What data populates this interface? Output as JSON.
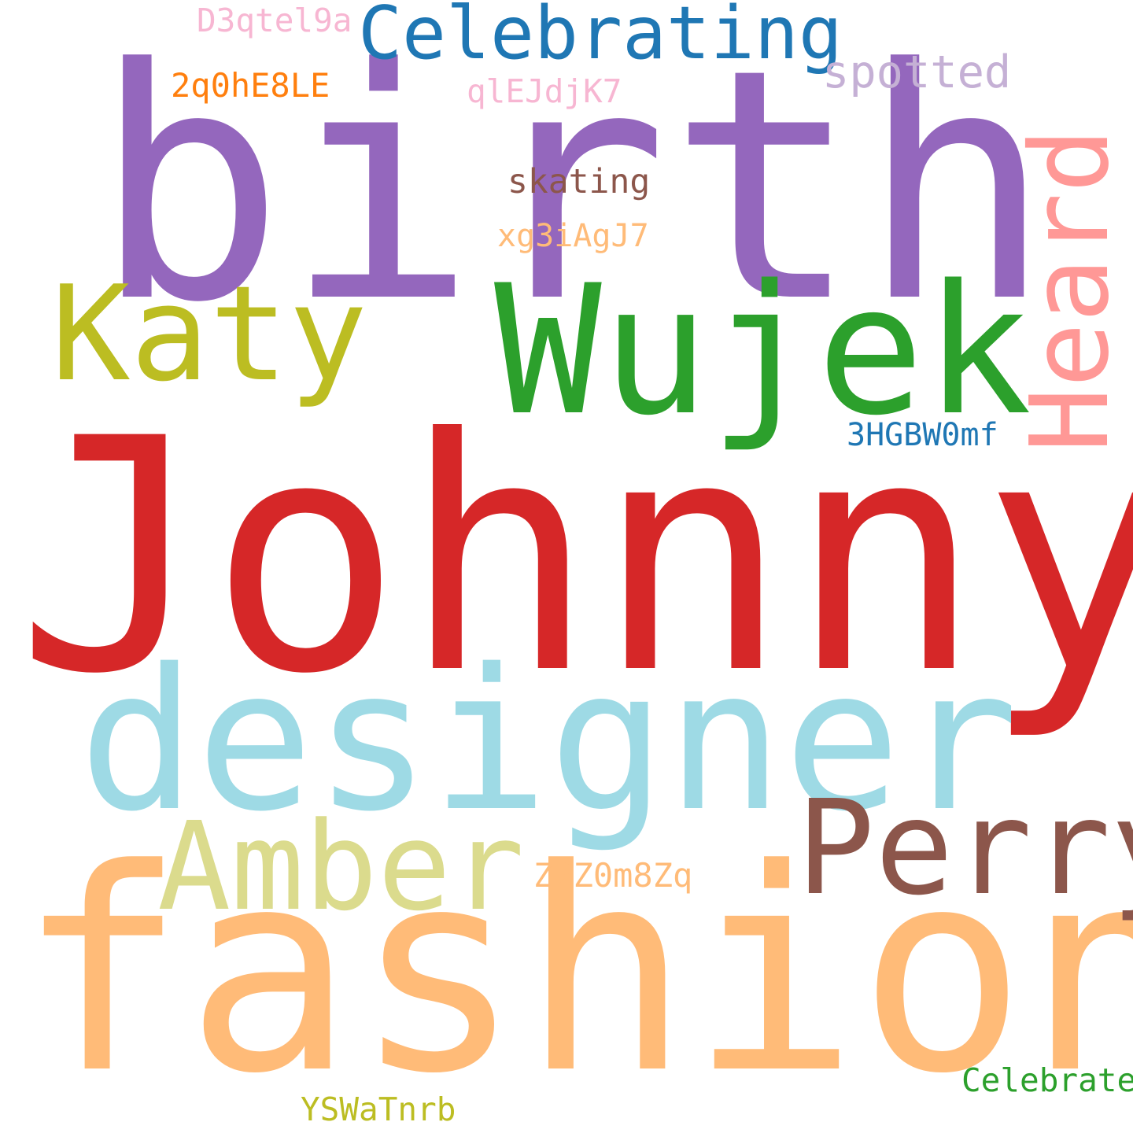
{
  "words": [
    {
      "id": "johnny",
      "text": "Johnny",
      "color": "#d62728"
    },
    {
      "id": "birth",
      "text": "birth",
      "color": "#9467bd"
    },
    {
      "id": "fashion",
      "text": "fashion",
      "color": "#ffbb78"
    },
    {
      "id": "designer",
      "text": "designer",
      "color": "#9edae5"
    },
    {
      "id": "wujek",
      "text": "Wujek",
      "color": "#2ca02c"
    },
    {
      "id": "katy",
      "text": "Katy",
      "color": "#bcbd22"
    },
    {
      "id": "perry",
      "text": "Perry",
      "color": "#8c564b"
    },
    {
      "id": "amber",
      "text": "Amber",
      "color": "#dbdb8d"
    },
    {
      "id": "heard",
      "text": "Heard",
      "color": "#ff9896"
    },
    {
      "id": "celebrating",
      "text": "Celebrating",
      "color": "#1f77b4"
    },
    {
      "id": "spotted",
      "text": "spotted",
      "color": "#c5b0d5"
    },
    {
      "id": "skating",
      "text": "skating",
      "color": "#8c564b"
    },
    {
      "id": "d3qtel9a",
      "text": "D3qtel9a",
      "color": "#f7b6d2"
    },
    {
      "id": "2q0he8le",
      "text": "2q0hE8LE",
      "color": "#ff7f0e"
    },
    {
      "id": "qlejdjk7",
      "text": "qlEJdjK7",
      "color": "#f7b6d2"
    },
    {
      "id": "xg3iagj7",
      "text": "xg3iAgJ7",
      "color": "#ffbb78"
    },
    {
      "id": "3hgbw0mf",
      "text": "3HGBW0mf",
      "color": "#1f77b4"
    },
    {
      "id": "z2z0m8zq",
      "text": "Z2Z0m8Zq",
      "color": "#ffbb78"
    },
    {
      "id": "celebrate",
      "text": "Celebrate",
      "color": "#2ca02c"
    },
    {
      "id": "yswatnrb",
      "text": "YSWaTnrb",
      "color": "#bcbd22"
    }
  ]
}
